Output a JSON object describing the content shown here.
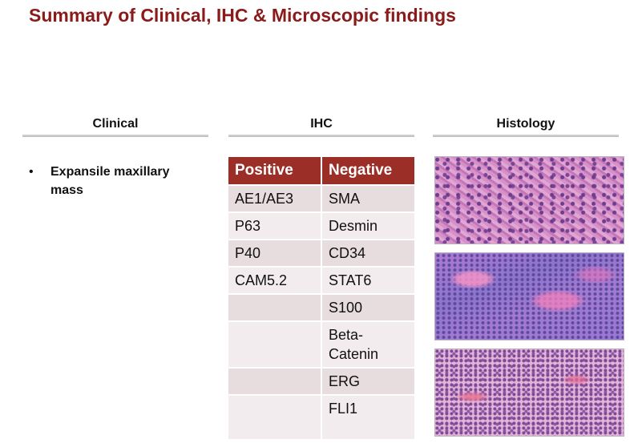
{
  "title": "Summary of Clinical, IHC & Microscopic findings",
  "columns": {
    "clinical": "Clinical",
    "ihc": "IHC",
    "histology": "Histology"
  },
  "clinical": {
    "bullet": "•",
    "items": [
      "Expansile maxillary mass"
    ]
  },
  "ihc_table": {
    "headers": [
      "Positive",
      "Negative"
    ],
    "rows": [
      [
        "AE1/AE3",
        "SMA"
      ],
      [
        "P63",
        "Desmin"
      ],
      [
        "P40",
        "CD34"
      ],
      [
        "CAM5.2",
        "STAT6"
      ],
      [
        "",
        "S100"
      ],
      [
        "",
        "Beta-Catenin"
      ],
      [
        "",
        "ERG"
      ],
      [
        "",
        "FLI1"
      ]
    ]
  },
  "colors": {
    "title": "#8b1a1a",
    "table_header": "#9b2f28",
    "row_odd": "#e7dcde",
    "row_even": "#f2ecee"
  }
}
